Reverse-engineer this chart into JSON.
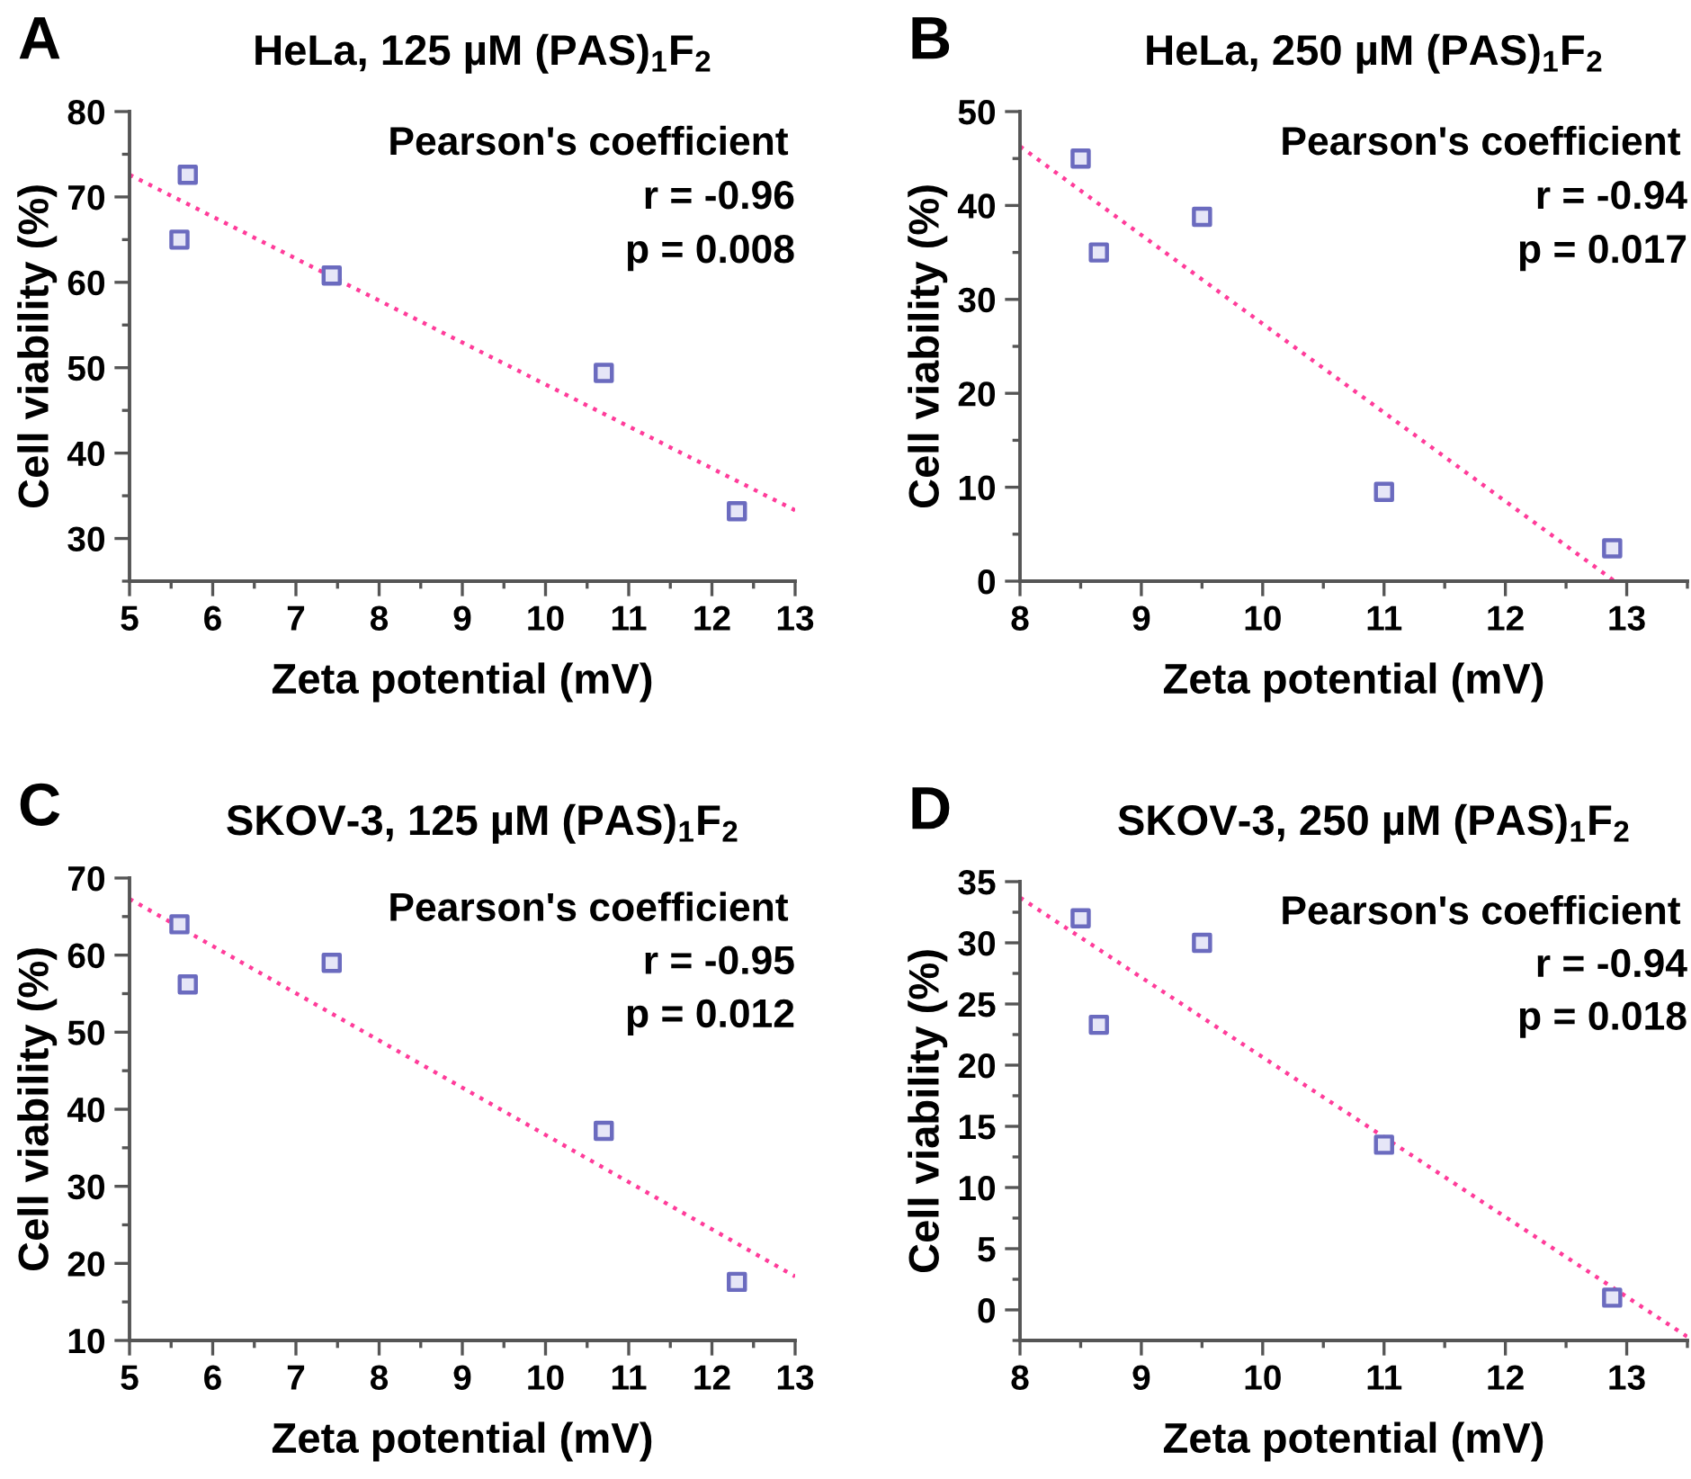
{
  "chart_data": [
    {
      "type": "scatter",
      "title": "HeLa, 125 µM (PAS)$_{1}$F$_{2}$",
      "xlabel": "Zeta potential (mV)",
      "ylabel": "Cell viability (%)",
      "annotations": [
        "A",
        "Pearson's coefficient",
        "r = -0.96",
        "p = 0.008"
      ],
      "xlim": [
        5,
        13
      ],
      "xticks": [
        5,
        6,
        7,
        8,
        9,
        10,
        11,
        12,
        13
      ],
      "ylim": [
        25,
        80
      ],
      "yticks": [
        30,
        40,
        50,
        60,
        70,
        80
      ],
      "marker": "square",
      "series": [
        {
          "type": "scatter",
          "color": "#6b6bbf",
          "x": [
            5.6,
            5.7,
            7.43,
            10.7,
            12.3
          ],
          "values": [
            65,
            72.6,
            60.8,
            49.4,
            33.2
          ]
        },
        {
          "type": "line",
          "color": "#ff3c9a",
          "line_style": "dotted",
          "marker": "none",
          "x": [
            5,
            13
          ],
          "values": [
            72.6,
            33.3
          ]
        }
      ]
    },
    {
      "type": "scatter",
      "title": "HeLa, 250 µM (PAS)$_{1}$F$_{2}$",
      "xlabel": "Zeta potential (mV)",
      "ylabel": "Cell viability (%)",
      "annotations": [
        "B",
        "Pearson's coefficient",
        "r = -0.94",
        "p = 0.017"
      ],
      "xlim": [
        8,
        13.5
      ],
      "xticks": [
        8,
        9,
        10,
        11,
        12,
        13
      ],
      "ylim": [
        0,
        50
      ],
      "yticks": [
        0,
        10,
        20,
        30,
        40,
        50
      ],
      "marker": "square",
      "series": [
        {
          "type": "scatter",
          "color": "#6b6bbf",
          "x": [
            8.5,
            8.65,
            9.5,
            11,
            12.88
          ],
          "values": [
            45,
            35,
            38.8,
            9.5,
            3.5
          ]
        },
        {
          "type": "line",
          "color": "#ff3c9a",
          "line_style": "dotted",
          "marker": "none",
          "x": [
            8,
            12.9
          ],
          "values": [
            46.3,
            0
          ]
        }
      ]
    },
    {
      "type": "scatter",
      "title": "SKOV-3, 125 µM (PAS)$_{1}$F$_{2}$",
      "xlabel": "Zeta potential (mV)",
      "ylabel": "Cell viability (%)",
      "annotations": [
        "C",
        "Pearson's coefficient",
        "r = -0.95",
        "p = 0.012"
      ],
      "xlim": [
        5,
        13
      ],
      "xticks": [
        5,
        6,
        7,
        8,
        9,
        10,
        11,
        12,
        13
      ],
      "ylim": [
        10,
        70
      ],
      "yticks": [
        10,
        20,
        30,
        40,
        50,
        60,
        70
      ],
      "marker": "square",
      "series": [
        {
          "type": "scatter",
          "color": "#6b6bbf",
          "x": [
            5.6,
            5.7,
            7.43,
            10.7,
            12.3
          ],
          "values": [
            64,
            56.2,
            59,
            37.2,
            17.6
          ]
        },
        {
          "type": "line",
          "color": "#ff3c9a",
          "line_style": "dotted",
          "marker": "none",
          "x": [
            5,
            13
          ],
          "values": [
            67.3,
            18.3
          ]
        }
      ]
    },
    {
      "type": "scatter",
      "title": "SKOV-3, 250 µM (PAS)$_{1}$F$_{2}$",
      "xlabel": "Zeta potential (mV)",
      "ylabel": "Cell viability (%)",
      "annotations": [
        "D",
        "Pearson's coefficient",
        "r = -0.94",
        "p = 0.018"
      ],
      "xlim": [
        8,
        13.5
      ],
      "xticks": [
        8,
        9,
        10,
        11,
        12,
        13
      ],
      "ylim": [
        -2.5,
        35
      ],
      "yticks": [
        0,
        5,
        10,
        15,
        20,
        25,
        30,
        35
      ],
      "marker": "square",
      "series": [
        {
          "type": "scatter",
          "color": "#6b6bbf",
          "x": [
            8.5,
            8.65,
            9.5,
            11,
            12.88
          ],
          "values": [
            32,
            23.3,
            30,
            13.5,
            1
          ]
        },
        {
          "type": "line",
          "color": "#ff3c9a",
          "line_style": "dotted",
          "marker": "none",
          "x": [
            8,
            13.5
          ],
          "values": [
            33.7,
            -2.2
          ]
        }
      ]
    }
  ]
}
